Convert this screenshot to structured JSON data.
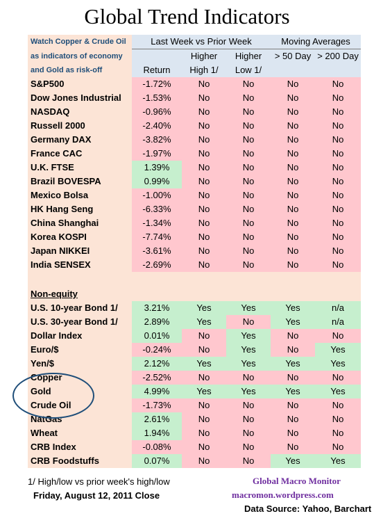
{
  "title": "Global Trend Indicators",
  "header": {
    "note_lines": [
      "Watch Copper & Crude Oil",
      "as indicators of economy",
      "and Gold as risk-off"
    ],
    "group_last_week": "Last Week vs Prior Week",
    "group_moving_averages": "Moving Averages",
    "col_return": "Return",
    "col_higher_high": [
      "Higher",
      "High  1/"
    ],
    "col_higher_low": [
      "Higher",
      "Low  1/"
    ],
    "col_ma50": "> 50 Day",
    "col_ma200": "> 200 Day"
  },
  "equity_rows": [
    {
      "name": "S&P500",
      "ret": "-1.72%",
      "hh": "No",
      "hl": "No",
      "ma50": "No",
      "ma200": "No"
    },
    {
      "name": "Dow Jones Industrial",
      "ret": "-1.53%",
      "hh": "No",
      "hl": "No",
      "ma50": "No",
      "ma200": "No"
    },
    {
      "name": "NASDAQ",
      "ret": "-0.96%",
      "hh": "No",
      "hl": "No",
      "ma50": "No",
      "ma200": "No"
    },
    {
      "name": "Russell 2000",
      "ret": "-2.40%",
      "hh": "No",
      "hl": "No",
      "ma50": "No",
      "ma200": "No"
    },
    {
      "name": "Germany DAX",
      "ret": "-3.82%",
      "hh": "No",
      "hl": "No",
      "ma50": "No",
      "ma200": "No"
    },
    {
      "name": "France CAC",
      "ret": "-1.97%",
      "hh": "No",
      "hl": "No",
      "ma50": "No",
      "ma200": "No"
    },
    {
      "name": "U.K. FTSE",
      "ret": "1.39%",
      "hh": "No",
      "hl": "No",
      "ma50": "No",
      "ma200": "No"
    },
    {
      "name": "Brazil BOVESPA",
      "ret": "0.99%",
      "hh": "No",
      "hl": "No",
      "ma50": "No",
      "ma200": "No"
    },
    {
      "name": "Mexico Bolsa",
      "ret": "-1.00%",
      "hh": "No",
      "hl": "No",
      "ma50": "No",
      "ma200": "No"
    },
    {
      "name": "HK  Hang Seng",
      "ret": "-6.33%",
      "hh": "No",
      "hl": "No",
      "ma50": "No",
      "ma200": "No"
    },
    {
      "name": "China Shanghai",
      "ret": "-1.34%",
      "hh": "No",
      "hl": "No",
      "ma50": "No",
      "ma200": "No"
    },
    {
      "name": "Korea KOSPI",
      "ret": "-7.74%",
      "hh": "No",
      "hl": "No",
      "ma50": "No",
      "ma200": "No"
    },
    {
      "name": "Japan NIKKEI",
      "ret": "-3.61%",
      "hh": "No",
      "hl": "No",
      "ma50": "No",
      "ma200": "No"
    },
    {
      "name": "India SENSEX",
      "ret": "-2.69%",
      "hh": "No",
      "hl": "No",
      "ma50": "No",
      "ma200": "No"
    }
  ],
  "non_equity_label": "Non-equity",
  "non_equity_rows": [
    {
      "name": "U.S. 10-year Bond 1/",
      "ret": "3.21%",
      "hh": "Yes",
      "hl": "Yes",
      "ma50": "Yes",
      "ma200": "n/a"
    },
    {
      "name": "U.S. 30-year Bond 1/",
      "ret": "2.89%",
      "hh": "Yes",
      "hl": "No",
      "ma50": "Yes",
      "ma200": "n/a"
    },
    {
      "name": "Dollar Index",
      "ret": "0.01%",
      "hh": "No",
      "hl": "Yes",
      "ma50": "No",
      "ma200": "No"
    },
    {
      "name": "Euro/$",
      "ret": "-0.24%",
      "hh": "No",
      "hl": "Yes",
      "ma50": "No",
      "ma200": "Yes"
    },
    {
      "name": "Yen/$",
      "ret": "2.12%",
      "hh": "Yes",
      "hl": "Yes",
      "ma50": "Yes",
      "ma200": "Yes"
    },
    {
      "name": "Copper",
      "ret": "-2.52%",
      "hh": "No",
      "hl": "No",
      "ma50": "No",
      "ma200": "No"
    },
    {
      "name": "Gold",
      "ret": "4.99%",
      "hh": "Yes",
      "hl": "Yes",
      "ma50": "Yes",
      "ma200": "Yes"
    },
    {
      "name": "Crude Oil",
      "ret": "-1.73%",
      "hh": "No",
      "hl": "No",
      "ma50": "No",
      "ma200": "No"
    },
    {
      "name": "NatGas",
      "ret": "2.61%",
      "hh": "No",
      "hl": "No",
      "ma50": "No",
      "ma200": "No"
    },
    {
      "name": "Wheat",
      "ret": "1.94%",
      "hh": "No",
      "hl": "No",
      "ma50": "No",
      "ma200": "No"
    },
    {
      "name": "CRB Index",
      "ret": "-0.08%",
      "hh": "No",
      "hl": "No",
      "ma50": "No",
      "ma200": "No"
    },
    {
      "name": "CRB Foodstuffs",
      "ret": "0.07%",
      "hh": "No",
      "hl": "No",
      "ma50": "Yes",
      "ma200": "Yes"
    }
  ],
  "colors": {
    "label_bg": "#fce4d6",
    "positive_bg": "#c6efce",
    "negative_bg": "#ffc7ce",
    "header_bg": "#dce6f1",
    "note_text": "#1f4e79",
    "brand_text": "#7030a0",
    "circle": "#1f4e79"
  },
  "footer": {
    "note": "1/  High/low vs prior week's high/low",
    "date": "Friday, August 12, 2011  Close",
    "brand": "Global Macro Monitor",
    "url": "macromon.wordpress.com",
    "source": "Data Source: Yahoo, Barchart"
  }
}
